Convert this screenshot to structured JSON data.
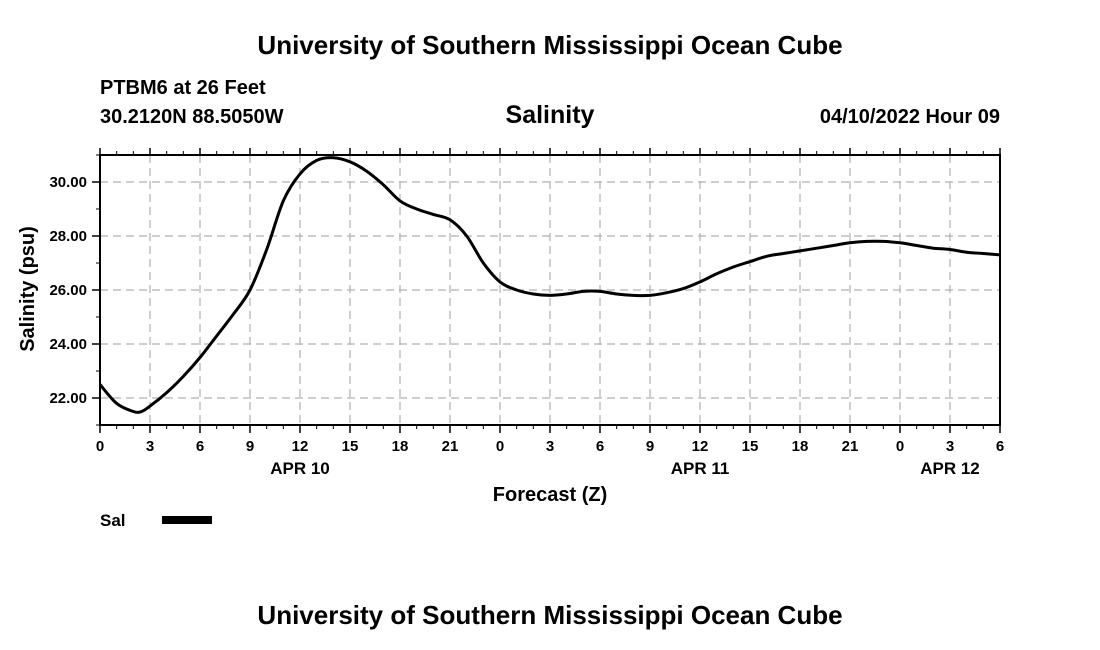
{
  "header": {
    "title": "University of Southern Mississippi Ocean Cube",
    "station": "PTBM6 at 26 Feet",
    "coords": "30.2120N  88.5050W",
    "datetime": "04/10/2022 Hour 09"
  },
  "footer": {
    "title": "University of Southern Mississippi Ocean Cube"
  },
  "chart_data": {
    "type": "line",
    "title": "Salinity",
    "xlabel": "Forecast (Z)",
    "ylabel": "Salinity (psu)",
    "x_units": "forecast hours from 00Z APR 10",
    "xlim": [
      0,
      54
    ],
    "ylim": [
      21.0,
      31.0
    ],
    "grid": true,
    "x_ticks": [
      0,
      3,
      6,
      9,
      12,
      15,
      18,
      21,
      24,
      27,
      30,
      33,
      36,
      39,
      42,
      45,
      48,
      51,
      54
    ],
    "x_tick_labels": [
      "0",
      "3",
      "6",
      "9",
      "12",
      "15",
      "18",
      "21",
      "0",
      "3",
      "6",
      "9",
      "12",
      "15",
      "18",
      "21",
      "0",
      "3",
      "6"
    ],
    "y_ticks": [
      22,
      24,
      26,
      28,
      30
    ],
    "y_tick_labels": [
      "22.00",
      "24.00",
      "26.00",
      "28.00",
      "30.00"
    ],
    "date_labels": [
      {
        "x": 12,
        "label": "APR 10"
      },
      {
        "x": 36,
        "label": "APR 11"
      },
      {
        "x": 51,
        "label": "APR 12"
      }
    ],
    "legend_position": "bottom-left",
    "series": [
      {
        "name": "Sal",
        "x": [
          0,
          1,
          2,
          2.5,
          3,
          4,
          5,
          6,
          7,
          8,
          9,
          10,
          11,
          12,
          13,
          14,
          15,
          16,
          17,
          18,
          19,
          20,
          21,
          22,
          23,
          24,
          25,
          26,
          27,
          28,
          29,
          30,
          31,
          32,
          33,
          34,
          35,
          36,
          37,
          38,
          39,
          40,
          41,
          42,
          43,
          44,
          45,
          46,
          47,
          48,
          49,
          50,
          51,
          52,
          53,
          54
        ],
        "values": [
          22.5,
          21.8,
          21.5,
          21.5,
          21.7,
          22.2,
          22.8,
          23.5,
          24.3,
          25.1,
          26.0,
          27.5,
          29.3,
          30.3,
          30.8,
          30.9,
          30.75,
          30.4,
          29.9,
          29.3,
          29.0,
          28.8,
          28.6,
          28.0,
          27.0,
          26.3,
          26.0,
          25.85,
          25.8,
          25.85,
          25.95,
          25.95,
          25.85,
          25.8,
          25.8,
          25.9,
          26.05,
          26.3,
          26.6,
          26.85,
          27.05,
          27.25,
          27.35,
          27.45,
          27.55,
          27.65,
          27.75,
          27.8,
          27.8,
          27.75,
          27.65,
          27.55,
          27.5,
          27.4,
          27.35,
          27.3
        ]
      }
    ]
  }
}
